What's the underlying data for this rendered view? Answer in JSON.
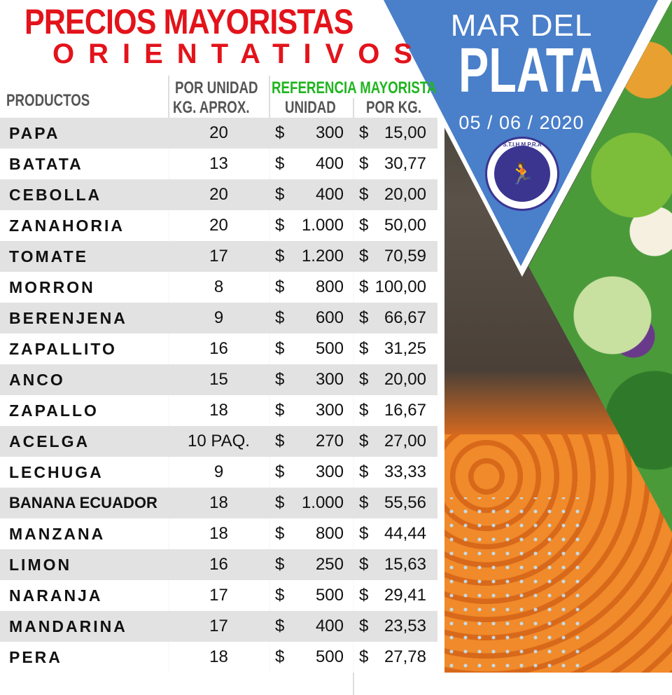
{
  "title": {
    "line1": "PRECIOS MAYORISTAS",
    "line2": "ORIENTATIVOS"
  },
  "city": {
    "line1": "MAR DEL",
    "line2": "PLATA",
    "date": "05 / 06 / 2020"
  },
  "logo": {
    "text": "S.T.I.H.M.P.R.A"
  },
  "headers": {
    "products": "PRODUCTOS",
    "per_unit_1": "POR UNIDAD",
    "per_unit_2": "KG. APROX.",
    "reference": "REFERENCIA MAYORISTA",
    "unit": "UNIDAD",
    "per_kg": "POR KG."
  },
  "colors": {
    "title": "#e3131b",
    "reference": "#1fb51f",
    "triangle": "#4a7fca"
  },
  "currency": "$",
  "rows": [
    {
      "product": "PAPA",
      "kg": "20",
      "unit": "300",
      "per_kg": "15,00"
    },
    {
      "product": "BATATA",
      "kg": "13",
      "unit": "400",
      "per_kg": "30,77"
    },
    {
      "product": "CEBOLLA",
      "kg": "20",
      "unit": "400",
      "per_kg": "20,00"
    },
    {
      "product": "ZANAHORIA",
      "kg": "20",
      "unit": "1.000",
      "per_kg": "50,00"
    },
    {
      "product": "TOMATE",
      "kg": "17",
      "unit": "1.200",
      "per_kg": "70,59"
    },
    {
      "product": "MORRON",
      "kg": "8",
      "unit": "800",
      "per_kg": "100,00"
    },
    {
      "product": "BERENJENA",
      "kg": "9",
      "unit": "600",
      "per_kg": "66,67"
    },
    {
      "product": "ZAPALLITO",
      "kg": "16",
      "unit": "500",
      "per_kg": "31,25"
    },
    {
      "product": "ANCO",
      "kg": "15",
      "unit": "300",
      "per_kg": "20,00"
    },
    {
      "product": "ZAPALLO",
      "kg": "18",
      "unit": "300",
      "per_kg": "16,67"
    },
    {
      "product": "ACELGA",
      "kg": "10 PAQ.",
      "unit": "270",
      "per_kg": "27,00"
    },
    {
      "product": "LECHUGA",
      "kg": "9",
      "unit": "300",
      "per_kg": "33,33"
    },
    {
      "product": "BANANA ECUADOR",
      "kg": "18",
      "unit": "1.000",
      "per_kg": "55,56"
    },
    {
      "product": "MANZANA",
      "kg": "18",
      "unit": "800",
      "per_kg": "44,44"
    },
    {
      "product": "LIMON",
      "kg": "16",
      "unit": "250",
      "per_kg": "15,63"
    },
    {
      "product": "NARANJA",
      "kg": "17",
      "unit": "500",
      "per_kg": "29,41"
    },
    {
      "product": "MANDARINA",
      "kg": "17",
      "unit": "400",
      "per_kg": "23,53"
    },
    {
      "product": "PERA",
      "kg": "18",
      "unit": "500",
      "per_kg": "27,78"
    }
  ]
}
